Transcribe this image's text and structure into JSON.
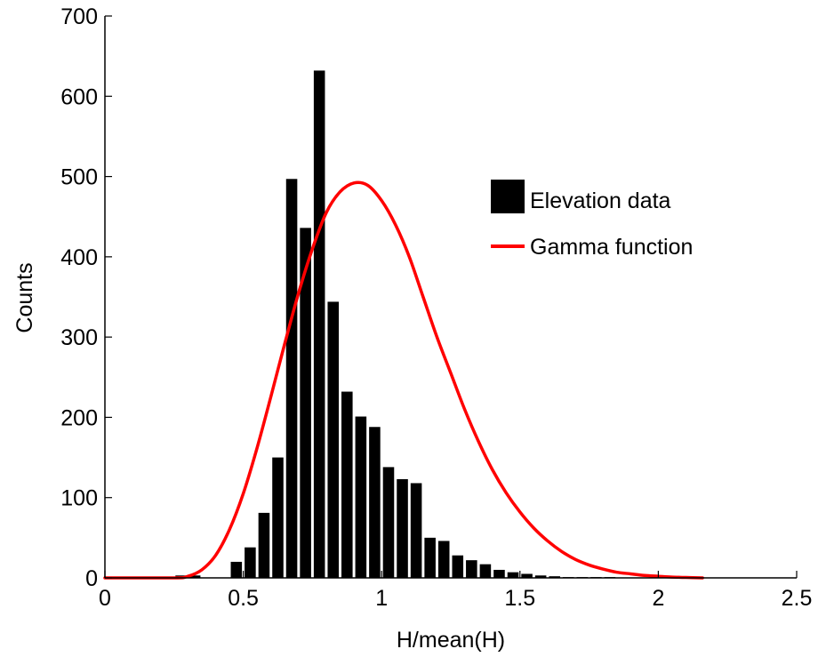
{
  "chart_data": {
    "type": "bar",
    "title": "",
    "xlabel": "H/mean(H)",
    "ylabel": "Counts",
    "xlim": [
      0,
      2.5
    ],
    "ylim": [
      0,
      700
    ],
    "xticks": [
      "0",
      "0.5",
      "1",
      "1.5",
      "2",
      "2.5"
    ],
    "yticks": [
      "0",
      "100",
      "200",
      "300",
      "400",
      "500",
      "600",
      "700"
    ],
    "grid": false,
    "legend_position": "top-right",
    "colors": {
      "bars": "#000000",
      "curve": "#ff0000"
    },
    "series": [
      {
        "name": "Elevation data",
        "kind": "histogram",
        "bin_width": 0.05,
        "bin_centers": [
          0.275,
          0.325,
          0.375,
          0.425,
          0.475,
          0.525,
          0.575,
          0.625,
          0.675,
          0.725,
          0.775,
          0.825,
          0.875,
          0.925,
          0.975,
          1.025,
          1.075,
          1.125,
          1.175,
          1.225,
          1.275,
          1.325,
          1.375,
          1.425,
          1.475,
          1.525,
          1.575,
          1.625,
          1.675,
          1.725,
          1.775,
          1.825
        ],
        "values": [
          3,
          3,
          0,
          0,
          20,
          38,
          81,
          150,
          497,
          436,
          632,
          344,
          232,
          201,
          188,
          138,
          123,
          118,
          50,
          46,
          28,
          22,
          17,
          10,
          7,
          5,
          3,
          2,
          1,
          1,
          1,
          1
        ]
      },
      {
        "name": "Gamma function",
        "kind": "line",
        "x": [
          0,
          0.25,
          0.3,
          0.35,
          0.4,
          0.45,
          0.5,
          0.55,
          0.6,
          0.65,
          0.7,
          0.75,
          0.8,
          0.85,
          0.9,
          0.95,
          1.0,
          1.05,
          1.1,
          1.15,
          1.2,
          1.25,
          1.3,
          1.35,
          1.4,
          1.45,
          1.5,
          1.55,
          1.6,
          1.65,
          1.7,
          1.75,
          1.8,
          1.85,
          1.9,
          1.95,
          2.0,
          2.05,
          2.1,
          2.16
        ],
        "y": [
          0,
          0,
          2,
          10,
          28,
          60,
          105,
          162,
          226,
          292,
          355,
          410,
          455,
          481,
          492,
          489,
          470,
          440,
          400,
          350,
          300,
          255,
          210,
          170,
          135,
          106,
          82,
          62,
          46,
          33,
          23,
          16,
          11,
          7,
          5,
          3,
          2,
          1,
          0.5,
          0
        ]
      }
    ]
  }
}
